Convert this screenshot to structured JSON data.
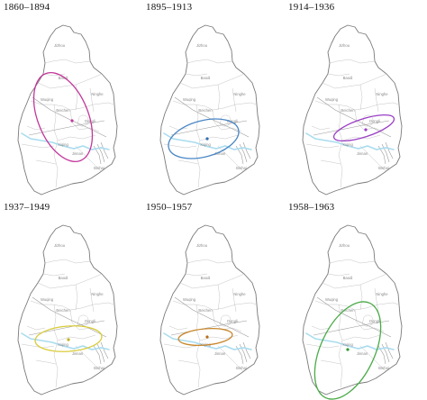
{
  "colors": {
    "outline": "#7a7a7a",
    "district_lines": "#c4c4c4",
    "roads": "#9a9a9a",
    "river": "#a9dcef"
  },
  "district_labels": [
    "Jizhou",
    "Baodi",
    "Wuqing",
    "Ninghe",
    "Beichen",
    "Dongli",
    "Xiqing",
    "Jinnan",
    "Binhai"
  ],
  "panels": [
    {
      "period": "1860–1894",
      "ellipse_color": "#c2379b",
      "center_color": "#c2379b"
    },
    {
      "period": "1895–1913",
      "ellipse_color": "#4a86c5",
      "center_color": "#2f6fb3"
    },
    {
      "period": "1914–1936",
      "ellipse_color": "#9a3ec4",
      "center_color": "#9a3ec4"
    },
    {
      "period": "1937–1949",
      "ellipse_color": "#d9cc3a",
      "center_color": "#c2b020"
    },
    {
      "period": "1950–1957",
      "ellipse_color": "#c8852a",
      "center_color": "#b56f18"
    },
    {
      "period": "1958–1963",
      "ellipse_color": "#4aab48",
      "center_color": "#2f9a2d"
    }
  ]
}
